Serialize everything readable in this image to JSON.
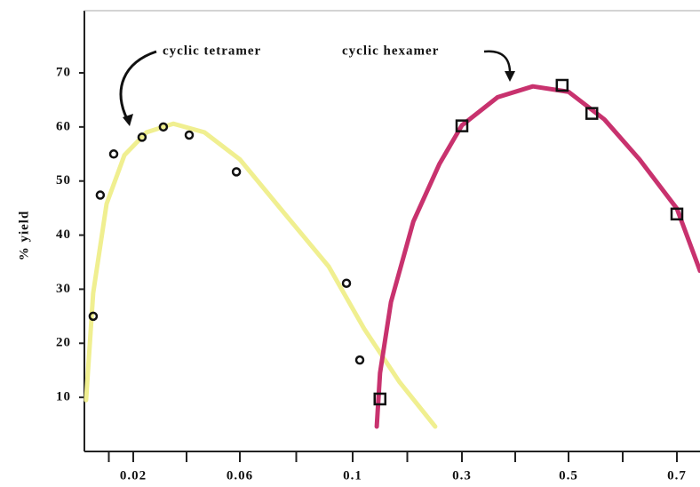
{
  "chart_data": {
    "type": "scatter",
    "y_label": "% yield",
    "annotations": [
      "cyclic tetramer",
      "cyclic hexamer"
    ],
    "xlim": [
      0,
      0.743
    ],
    "ylim": [
      0,
      81.5
    ],
    "xticks": [
      0.02,
      0.06,
      0.1,
      0.3,
      0.5,
      0.7
    ],
    "yticks": [
      10,
      20,
      30,
      40,
      50,
      60,
      70
    ],
    "series": [
      {
        "marker": "none",
        "color": "#f0ef90",
        "x": [
          0.0007,
          0.0036,
          0.0091,
          0.0164,
          0.025,
          0.035,
          0.0467,
          0.06,
          0.0757,
          0.0915,
          0.121,
          0.186,
          0.251
        ],
        "values": [
          9.5,
          29.3,
          45.8,
          54.8,
          59.0,
          60.6,
          59.0,
          54.0,
          44.1,
          34.2,
          22.7,
          12.8,
          4.6
        ]
      },
      {
        "marker": "none",
        "color": "#c8326e",
        "x": [
          0.144,
          0.15,
          0.17,
          0.211,
          0.259,
          0.3,
          0.367,
          0.433,
          0.5,
          0.566,
          0.631,
          0.7,
          0.743
        ],
        "values": [
          4.6,
          14.5,
          27.6,
          42.5,
          53.2,
          60.3,
          65.5,
          67.5,
          66.5,
          61.4,
          54.0,
          44.9,
          33.4
        ]
      },
      {
        "marker": "circle",
        "color": "#111",
        "x": [
          0.0036,
          0.0065,
          0.012,
          0.0233,
          0.0313,
          0.041,
          0.0587,
          0.0978,
          0.113
        ],
        "values": [
          25,
          47.4,
          55,
          58.1,
          60,
          58.5,
          51.7,
          31.1,
          16.9
        ]
      },
      {
        "marker": "square",
        "color": "#111",
        "x": [
          0.15,
          0.3,
          0.488,
          0.543,
          0.7
        ],
        "values": [
          9.7,
          60.2,
          67.7,
          62.5,
          43.9
        ]
      }
    ]
  }
}
